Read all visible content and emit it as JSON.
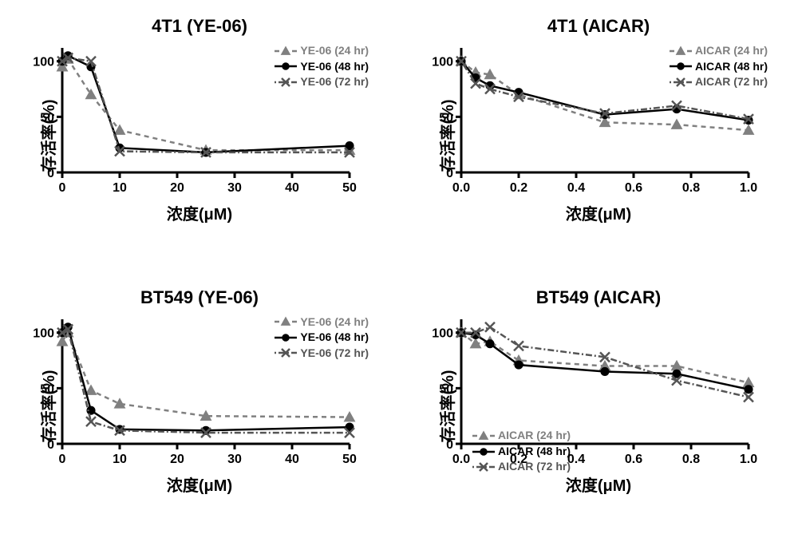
{
  "global": {
    "ylabel": "存活率(%)",
    "xlabel": "浓度(μM)",
    "background_color": "#ffffff",
    "axis_color": "#000000",
    "title_fontsize": 22,
    "label_fontsize": 20,
    "tick_fontsize": 16,
    "legend_fontsize": 14,
    "line_width": 2.5,
    "marker_size": 6
  },
  "series_styles": {
    "s24": {
      "color": "#808080",
      "marker": "triangle",
      "dash": "6,5",
      "fill": "#808080"
    },
    "s48": {
      "color": "#000000",
      "marker": "circle",
      "dash": "",
      "fill": "#000000"
    },
    "s72": {
      "color": "#555555",
      "marker": "x",
      "dash": "2,3,8,3",
      "fill": "none"
    }
  },
  "panels": [
    {
      "id": "p4t1ye",
      "title": "4T1 (YE-06)",
      "xlim": [
        0,
        50
      ],
      "xticks": [
        0,
        10,
        20,
        30,
        40,
        50
      ],
      "ylim": [
        0,
        100
      ],
      "yticks": [
        0,
        50,
        100
      ],
      "legend_pos": "top-right",
      "legend_labels": [
        "YE-06 (24 hr)",
        "YE-06 (48 hr)",
        "YE-06 (72 hr)"
      ],
      "series": {
        "s24": {
          "x": [
            0,
            1,
            5,
            10,
            25,
            50
          ],
          "y": [
            95,
            102,
            70,
            38,
            20,
            20
          ]
        },
        "s48": {
          "x": [
            0,
            1,
            5,
            10,
            25,
            50
          ],
          "y": [
            100,
            105,
            95,
            22,
            18,
            24
          ]
        },
        "s72": {
          "x": [
            0,
            1,
            5,
            10,
            25,
            50
          ],
          "y": [
            100,
            103,
            100,
            19,
            18,
            18
          ]
        }
      }
    },
    {
      "id": "p4t1ai",
      "title": "4T1 (AICAR)",
      "xlim": [
        0.0,
        1.0
      ],
      "xticks": [
        0.0,
        0.2,
        0.4,
        0.6,
        0.8,
        1.0
      ],
      "ylim": [
        0,
        100
      ],
      "yticks": [
        0,
        50,
        100
      ],
      "legend_pos": "top-right",
      "legend_labels": [
        "AICAR (24 hr)",
        "AICAR (48 hr)",
        "AICAR (72 hr)"
      ],
      "series": {
        "s24": {
          "x": [
            0.0,
            0.05,
            0.1,
            0.2,
            0.5,
            0.75,
            1.0
          ],
          "y": [
            100,
            90,
            88,
            70,
            45,
            43,
            38
          ]
        },
        "s48": {
          "x": [
            0.0,
            0.05,
            0.1,
            0.2,
            0.5,
            0.75,
            1.0
          ],
          "y": [
            100,
            85,
            78,
            72,
            52,
            57,
            47
          ]
        },
        "s72": {
          "x": [
            0.0,
            0.05,
            0.1,
            0.2,
            0.5,
            0.75,
            1.0
          ],
          "y": [
            100,
            80,
            75,
            68,
            53,
            60,
            48
          ]
        }
      }
    },
    {
      "id": "pbtye",
      "title": "BT549 (YE-06)",
      "xlim": [
        0,
        50
      ],
      "xticks": [
        0,
        10,
        20,
        30,
        40,
        50
      ],
      "ylim": [
        0,
        100
      ],
      "yticks": [
        0,
        50,
        100
      ],
      "legend_pos": "top-right",
      "legend_labels": [
        "YE-06 (24 hr)",
        "YE-06 (48 hr)",
        "YE-06 (72 hr)"
      ],
      "series": {
        "s24": {
          "x": [
            0,
            1,
            5,
            10,
            25,
            50
          ],
          "y": [
            92,
            100,
            48,
            36,
            25,
            24
          ]
        },
        "s48": {
          "x": [
            0,
            1,
            5,
            10,
            25,
            50
          ],
          "y": [
            100,
            105,
            30,
            13,
            12,
            15
          ]
        },
        "s72": {
          "x": [
            0,
            1,
            5,
            10,
            25,
            50
          ],
          "y": [
            100,
            103,
            20,
            12,
            10,
            10
          ]
        }
      }
    },
    {
      "id": "pbtai",
      "title": "BT549 (AICAR)",
      "xlim": [
        0.0,
        1.0
      ],
      "xticks": [
        0.0,
        0.2,
        0.4,
        0.6,
        0.8,
        1.0
      ],
      "ylim": [
        0,
        100
      ],
      "yticks": [
        0,
        50,
        100
      ],
      "legend_pos": "bottom-left",
      "legend_labels": [
        "AICAR (24 hr)",
        "AICAR (48 hr)",
        "AICAR (72 hr)"
      ],
      "series": {
        "s24": {
          "x": [
            0.0,
            0.05,
            0.1,
            0.2,
            0.5,
            0.75,
            1.0
          ],
          "y": [
            100,
            90,
            92,
            75,
            70,
            70,
            55
          ]
        },
        "s48": {
          "x": [
            0.0,
            0.05,
            0.1,
            0.2,
            0.5,
            0.75,
            1.0
          ],
          "y": [
            100,
            98,
            90,
            71,
            65,
            63,
            49
          ]
        },
        "s72": {
          "x": [
            0.0,
            0.05,
            0.1,
            0.2,
            0.5,
            0.75,
            1.0
          ],
          "y": [
            100,
            100,
            105,
            88,
            78,
            57,
            42
          ]
        }
      }
    }
  ]
}
